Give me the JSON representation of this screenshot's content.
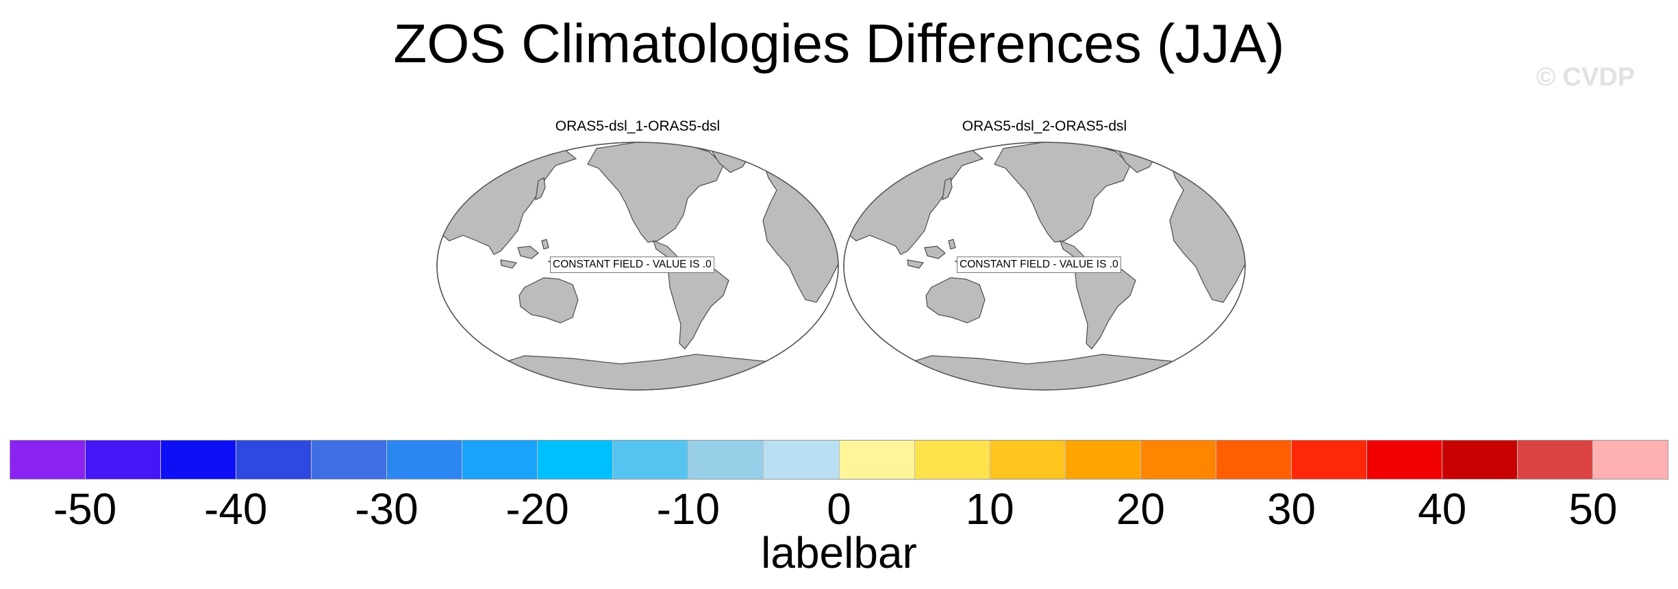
{
  "title": "ZOS Climatologies Differences (JJA)",
  "watermark": "© CVDP",
  "panels": [
    {
      "title": "ORAS5-dsl_1-ORAS5-dsl",
      "message": "CONSTANT FIELD - VALUE IS .0"
    },
    {
      "title": "ORAS5-dsl_2-ORAS5-dsl",
      "message": "CONSTANT FIELD - VALUE IS .0"
    }
  ],
  "colors": {
    "land": "#bcbcbc",
    "ocean": "#ffffff",
    "coast": "#4a4a4a",
    "labelbar": [
      "#8a23f2",
      "#4516f6",
      "#0d0ff4",
      "#2f48e0",
      "#3d6fe3",
      "#2a86f0",
      "#1aa3fb",
      "#00bfff",
      "#55c4f0",
      "#97cfe8",
      "#b9e0f2",
      "#fff598",
      "#ffe14c",
      "#ffc51f",
      "#ffa400",
      "#ff8500",
      "#ff5f00",
      "#ff2808",
      "#f00000",
      "#c90000",
      "#dc4444",
      "#ffb0b0"
    ]
  },
  "labelbar": {
    "title": "labelbar",
    "ticks": [
      {
        "label": "-50",
        "index": 1
      },
      {
        "label": "-40",
        "index": 3
      },
      {
        "label": "-30",
        "index": 5
      },
      {
        "label": "-20",
        "index": 7
      },
      {
        "label": "-10",
        "index": 9
      },
      {
        "label": "0",
        "index": 11
      },
      {
        "label": "10",
        "index": 13
      },
      {
        "label": "20",
        "index": 15
      },
      {
        "label": "30",
        "index": 17
      },
      {
        "label": "40",
        "index": 19
      },
      {
        "label": "50",
        "index": 21
      }
    ]
  }
}
